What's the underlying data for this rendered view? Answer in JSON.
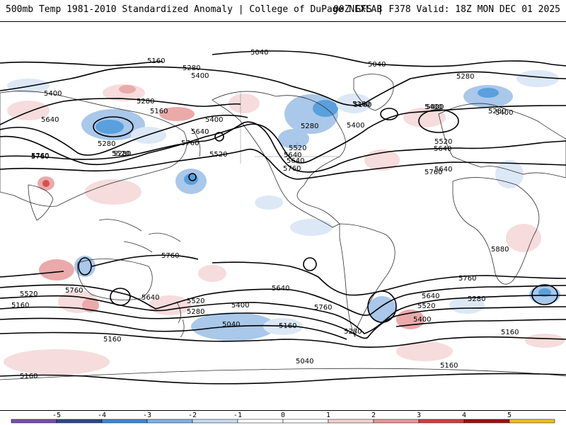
{
  "header": {
    "title": "500mb Temp 1981-2010 Standardized Anomaly | College of DuPage NEXLAB",
    "run_info": "00Z GFS | F378 Valid: 18Z MON DEC 01 2025"
  },
  "colors": {
    "contour": "#000000",
    "coastline": "#303030",
    "cold_1": "#dce8f6",
    "cold_2": "#a9c8ea",
    "cold_3": "#5aa0dc",
    "warm_1": "#f6dcdc",
    "warm_2": "#eaaaaa",
    "warm_3": "#d85050"
  },
  "contour_labels": [
    {
      "text": "5160"
    },
    {
      "text": "5280"
    },
    {
      "text": "5400"
    },
    {
      "text": "5040"
    },
    {
      "text": "5040"
    },
    {
      "text": "5280"
    },
    {
      "text": "5400"
    },
    {
      "text": "5160"
    },
    {
      "text": "5280"
    },
    {
      "text": "5160"
    },
    {
      "text": "5400"
    },
    {
      "text": "5640"
    },
    {
      "text": "5280"
    },
    {
      "text": "5520"
    },
    {
      "text": "5640"
    },
    {
      "text": "5760"
    },
    {
      "text": "5400"
    },
    {
      "text": "5640"
    },
    {
      "text": "5760"
    },
    {
      "text": "5280"
    },
    {
      "text": "5400"
    },
    {
      "text": "5520"
    },
    {
      "text": "5640"
    },
    {
      "text": "5760"
    },
    {
      "text": "5280"
    },
    {
      "text": "5400"
    },
    {
      "text": "5520"
    },
    {
      "text": "5640"
    },
    {
      "text": "5760"
    },
    {
      "text": "5160"
    },
    {
      "text": "5400"
    },
    {
      "text": "5880"
    },
    {
      "text": "5760"
    },
    {
      "text": "5640"
    },
    {
      "text": "5520"
    },
    {
      "text": "5400"
    },
    {
      "text": "5280"
    },
    {
      "text": "5160"
    },
    {
      "text": "5760"
    },
    {
      "text": "5640"
    },
    {
      "text": "5520"
    },
    {
      "text": "5280"
    },
    {
      "text": "5760"
    },
    {
      "text": "5640"
    },
    {
      "text": "5520"
    },
    {
      "text": "5400"
    },
    {
      "text": "5280"
    },
    {
      "text": "5040"
    },
    {
      "text": "5160"
    },
    {
      "text": "5160"
    },
    {
      "text": "5040"
    },
    {
      "text": "5160"
    },
    {
      "text": "5160"
    },
    {
      "text": "5760"
    },
    {
      "text": "5520"
    },
    {
      "text": "5280"
    },
    {
      "text": "5160"
    },
    {
      "text": "5640"
    },
    {
      "text": "5760"
    }
  ],
  "colorbar": {
    "ticks": [
      {
        "label": "-5",
        "value": -5
      },
      {
        "label": "-4",
        "value": -4
      },
      {
        "label": "-3",
        "value": -3
      },
      {
        "label": "-2",
        "value": -2
      },
      {
        "label": "-1",
        "value": -1
      },
      {
        "label": "0",
        "value": 0
      },
      {
        "label": "1",
        "value": 1
      },
      {
        "label": "2",
        "value": 2
      },
      {
        "label": "3",
        "value": 3
      },
      {
        "label": "4",
        "value": 4
      },
      {
        "label": "5",
        "value": 5
      }
    ],
    "bins": [
      {
        "from": -6,
        "to": -5,
        "color": "#7a4fb0"
      },
      {
        "from": -5,
        "to": -4,
        "color": "#2f4a8a"
      },
      {
        "from": -4,
        "to": -3,
        "color": "#3d8ad6"
      },
      {
        "from": -3,
        "to": -2,
        "color": "#7fb4e6"
      },
      {
        "from": -2,
        "to": -1,
        "color": "#c6dcf2"
      },
      {
        "from": -1,
        "to": 0,
        "color": "#ffffff"
      },
      {
        "from": 0,
        "to": 1,
        "color": "#ffffff"
      },
      {
        "from": 1,
        "to": 2,
        "color": "#f6d2d2"
      },
      {
        "from": 2,
        "to": 3,
        "color": "#e89a9a"
      },
      {
        "from": 3,
        "to": 4,
        "color": "#d44040"
      },
      {
        "from": 4,
        "to": 5,
        "color": "#a01010"
      },
      {
        "from": 5,
        "to": 6,
        "color": "#f0c020"
      }
    ],
    "range": [
      -6,
      6
    ]
  }
}
